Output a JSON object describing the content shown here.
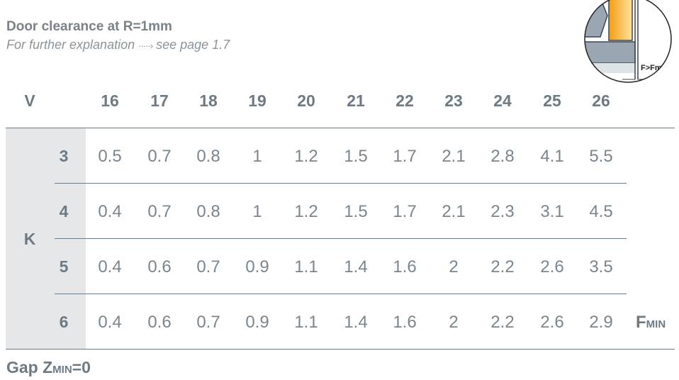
{
  "title": "Door clearance at R=1mm",
  "subtitle": {
    "text": "For further explanation",
    "arrow": "·····›",
    "link": "see page 1.7"
  },
  "table": {
    "col_axis_label": "V",
    "row_axis_label": "K",
    "columns": [
      "16",
      "17",
      "18",
      "19",
      "20",
      "21",
      "22",
      "23",
      "24",
      "25",
      "26"
    ],
    "rows": [
      {
        "k": "3",
        "values": [
          "0.5",
          "0.7",
          "0.8",
          "1",
          "1.2",
          "1.5",
          "1.7",
          "2.1",
          "2.8",
          "4.1",
          "5.5"
        ]
      },
      {
        "k": "4",
        "values": [
          "0.4",
          "0.7",
          "0.8",
          "1",
          "1.2",
          "1.5",
          "1.7",
          "2.1",
          "2.3",
          "3.1",
          "4.5"
        ]
      },
      {
        "k": "5",
        "values": [
          "0.4",
          "0.6",
          "0.7",
          "0.9",
          "1.1",
          "1.4",
          "1.6",
          "2",
          "2.2",
          "2.6",
          "3.5"
        ]
      },
      {
        "k": "6",
        "values": [
          "0.4",
          "0.6",
          "0.7",
          "0.9",
          "1.1",
          "1.4",
          "1.6",
          "2",
          "2.2",
          "2.6",
          "2.9"
        ]
      }
    ],
    "value_label": {
      "main": "F",
      "sub": "MIN"
    }
  },
  "footer": {
    "main": "Gap Z",
    "sub": "MIN",
    "suffix": "=0"
  },
  "diagram": {
    "label": "F>Fmin",
    "colors": {
      "door": "#f5a623",
      "cabinet": "#9aa6b2"
    }
  }
}
